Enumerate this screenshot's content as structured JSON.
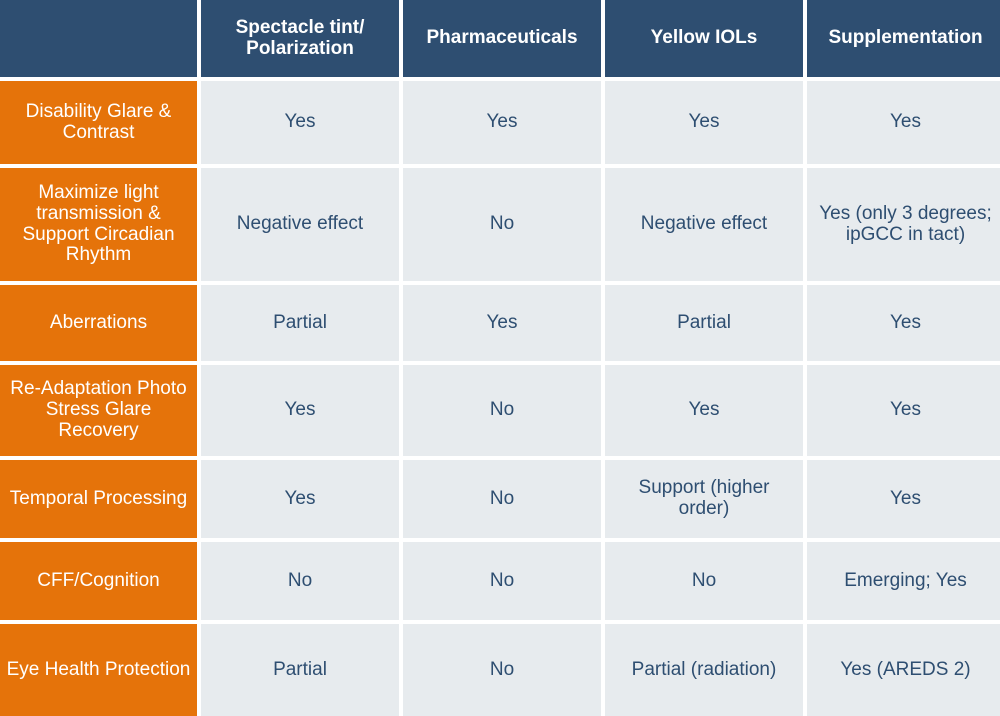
{
  "table": {
    "columns": [
      "Spectacle tint/ Polarization",
      "Pharmaceuticals",
      "Yellow IOLs",
      "Supplementation"
    ],
    "rows": [
      {
        "label": "Disability Glare & Contrast",
        "cells": [
          "Yes",
          "Yes",
          "Yes",
          "Yes"
        ]
      },
      {
        "label": "Maximize light transmission & Support Circadian Rhythm",
        "cells": [
          "Negative effect",
          "No",
          "Negative effect",
          "Yes (only 3 degrees; ipGCC in tact)"
        ]
      },
      {
        "label": "Aberrations",
        "cells": [
          "Partial",
          "Yes",
          "Partial",
          "Yes"
        ]
      },
      {
        "label": "Re-Adaptation Photo Stress Glare Recovery",
        "cells": [
          "Yes",
          "No",
          "Yes",
          "Yes"
        ]
      },
      {
        "label": "Temporal Processing",
        "cells": [
          "Yes",
          "No",
          "Support (higher order)",
          "Yes"
        ]
      },
      {
        "label": "CFF/Cognition",
        "cells": [
          "No",
          "No",
          "No",
          "Emerging; Yes"
        ]
      },
      {
        "label": "Eye Health Protection",
        "cells": [
          "Partial",
          "No",
          "Partial (radiation)",
          "Yes (AREDS 2)"
        ]
      }
    ]
  },
  "colors": {
    "header_bg": "#2e4e71",
    "row_header_bg": "#e5730a",
    "cell_bg": "#e7ebee",
    "cell_text": "#2e4e71"
  }
}
